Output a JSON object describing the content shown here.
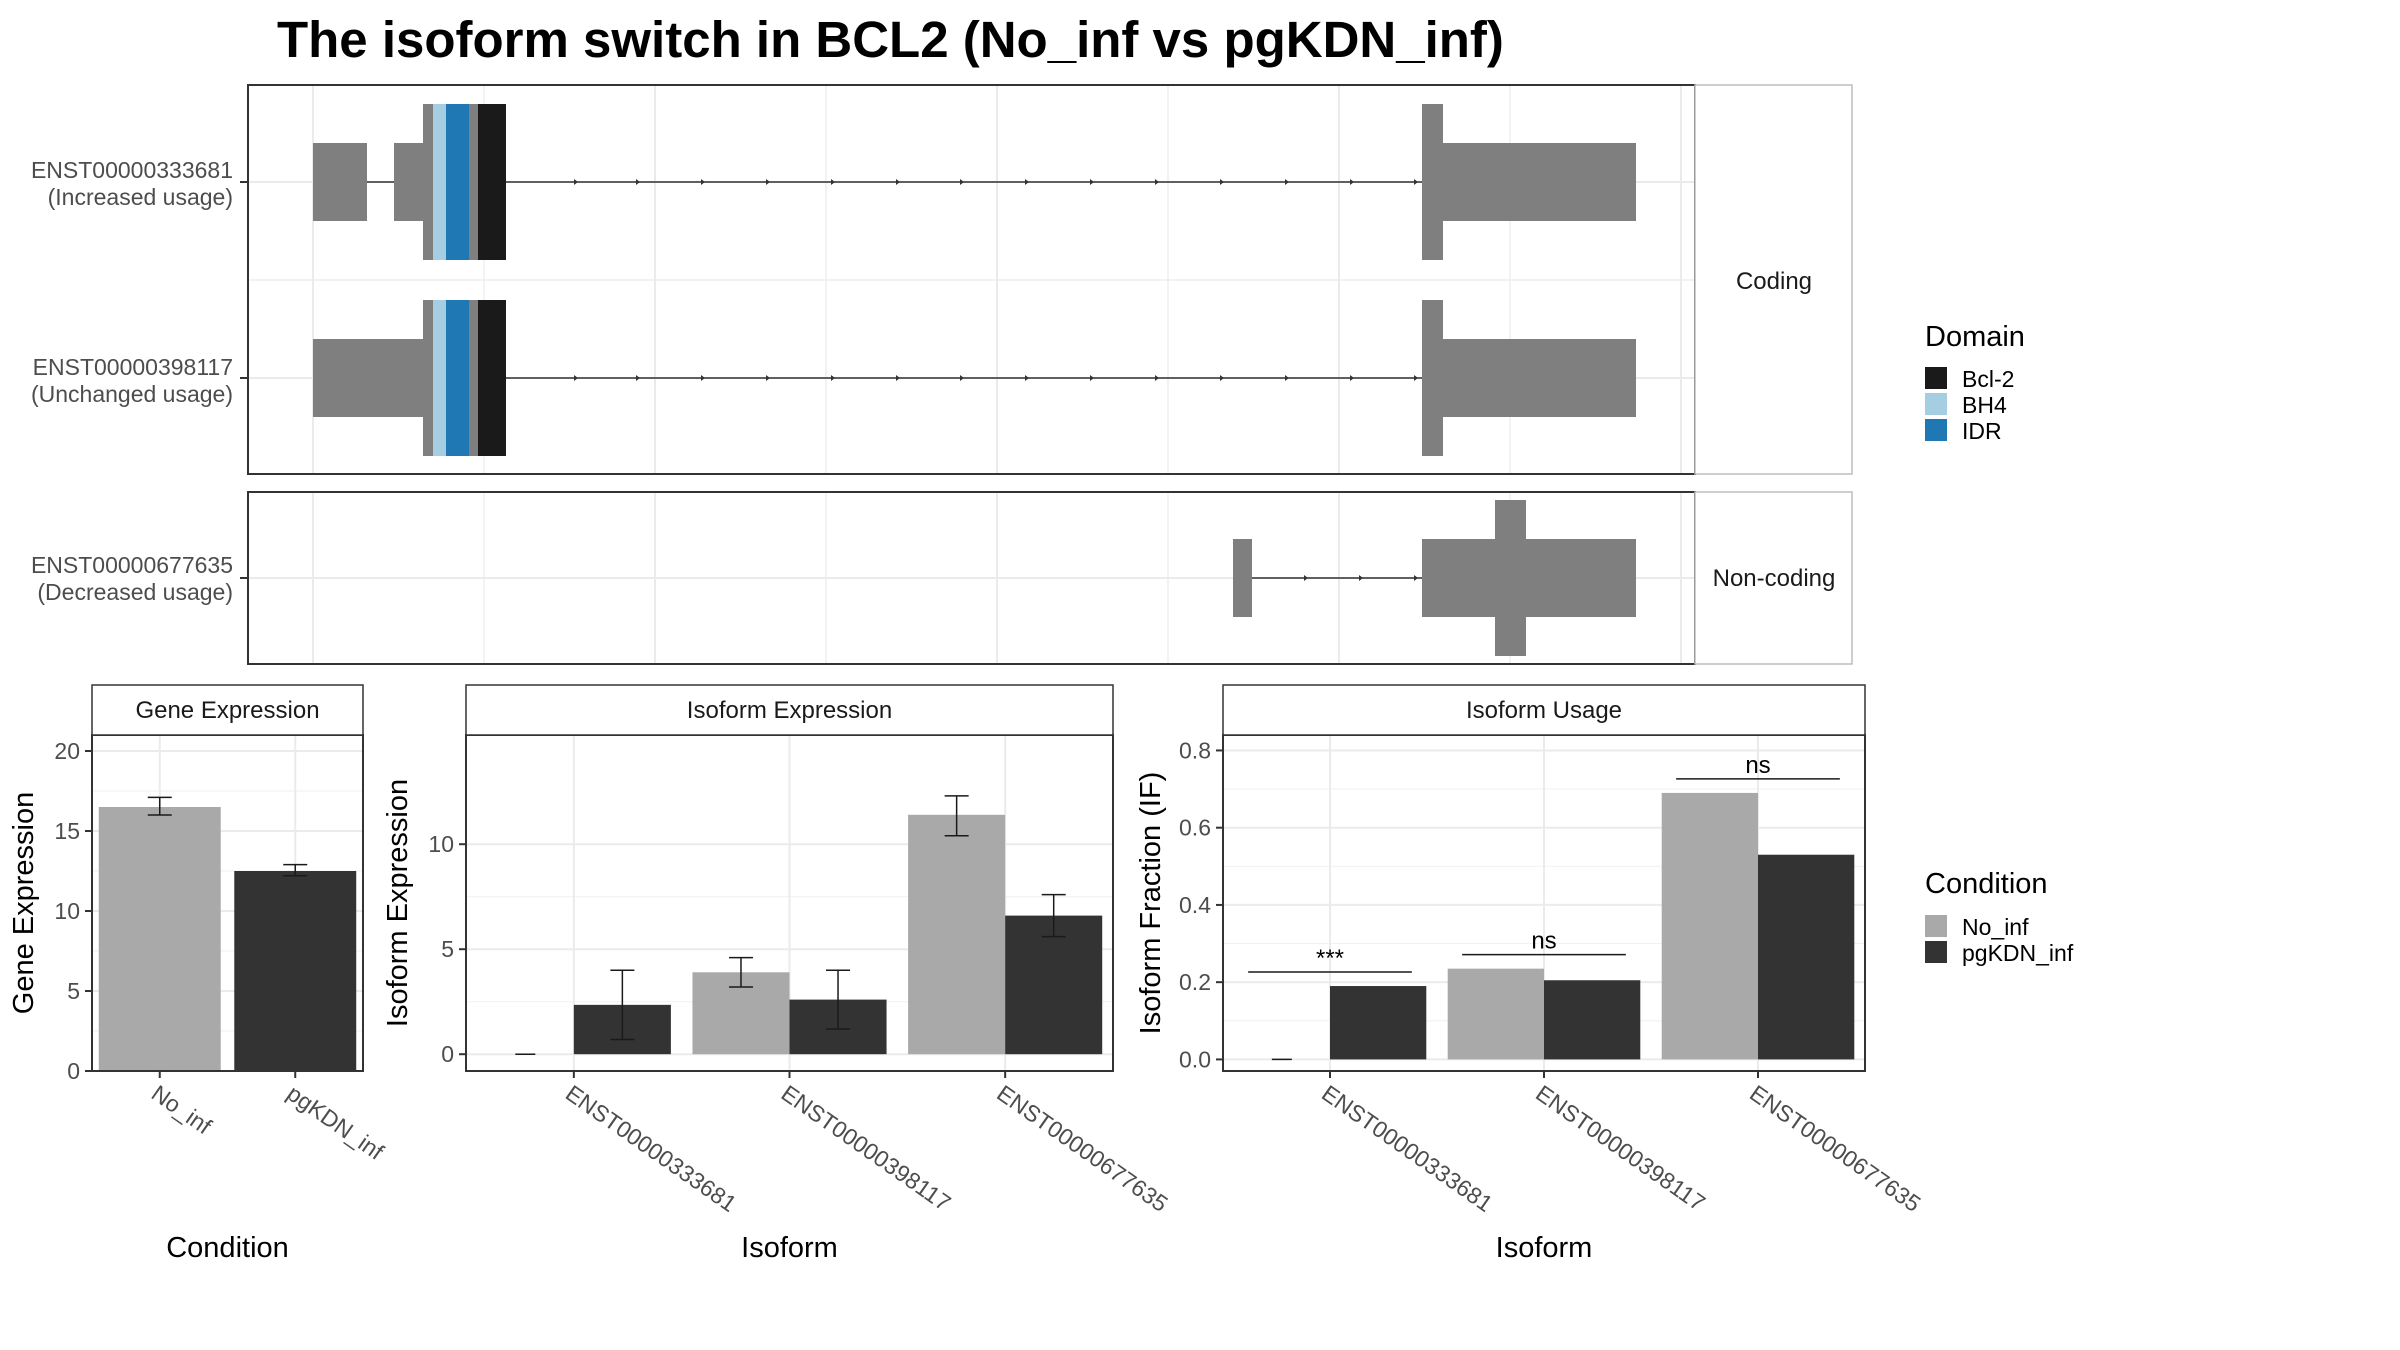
{
  "title": "The isoform switch in BCL2 (No_inf vs pgKDN_inf)",
  "colors": {
    "exon": "#7f7f7f",
    "Bcl-2": "#1a1a1a",
    "BH4": "#a6cee3",
    "IDR": "#1f78b4",
    "No_inf": "#a9a9a9",
    "pgKDN_inf": "#333333",
    "grid": "#ebebeb",
    "strip_bg": "#ffffff",
    "panel_border": "#333333",
    "strip_border": "#bdbdbd"
  },
  "structure": {
    "groups": [
      {
        "label": "Coding",
        "transcripts": [
          {
            "id": "ENST00000333681",
            "note": "(Increased usage)"
          },
          {
            "id": "ENST00000398117",
            "note": "(Unchanged usage)"
          }
        ]
      },
      {
        "label": "Non-coding",
        "transcripts": [
          {
            "id": "ENST00000677635",
            "note": "(Decreased usage)"
          }
        ]
      }
    ],
    "domain_legend": {
      "title": "Domain",
      "items": [
        {
          "name": "Bcl-2",
          "color": "#1a1a1a"
        },
        {
          "name": "BH4",
          "color": "#a6cee3"
        },
        {
          "name": "IDR",
          "color": "#1f78b4"
        }
      ]
    }
  },
  "chart_data": [
    {
      "type": "bar",
      "title": "Gene Expression",
      "xlabel": "Condition",
      "ylabel": "Gene Expression",
      "categories": [
        "No_inf",
        "pgKDN_inf"
      ],
      "values": [
        16.5,
        12.5
      ],
      "errors": [
        [
          16.0,
          17.1
        ],
        [
          12.2,
          12.9
        ]
      ],
      "ylim": [
        0,
        21
      ],
      "yticks": [
        0,
        5,
        10,
        15,
        20
      ],
      "grid": true
    },
    {
      "type": "bar",
      "title": "Isoform Expression",
      "xlabel": "Isoform",
      "ylabel": "Isoform Expression",
      "categories": [
        "ENST00000333681",
        "ENST00000398117",
        "ENST00000677635"
      ],
      "series": [
        {
          "name": "No_inf",
          "values": [
            0.0,
            3.9,
            11.4
          ],
          "errors": [
            [
              0.0,
              0.0
            ],
            [
              3.2,
              4.6
            ],
            [
              10.4,
              12.3
            ]
          ]
        },
        {
          "name": "pgKDN_inf",
          "values": [
            2.35,
            2.6,
            6.6
          ],
          "errors": [
            [
              0.7,
              4.0
            ],
            [
              1.2,
              4.0
            ],
            [
              5.6,
              7.6
            ]
          ]
        }
      ],
      "ylim": [
        -0.8,
        15.2
      ],
      "yticks": [
        0,
        5,
        10
      ],
      "grid": true
    },
    {
      "type": "bar",
      "title": "Isoform Usage",
      "xlabel": "Isoform",
      "ylabel": "Isoform Fraction (IF)",
      "categories": [
        "ENST00000333681",
        "ENST00000398117",
        "ENST00000677635"
      ],
      "series": [
        {
          "name": "No_inf",
          "values": [
            0.0,
            0.235,
            0.69
          ]
        },
        {
          "name": "pgKDN_inf",
          "values": [
            0.19,
            0.205,
            0.53
          ]
        }
      ],
      "annotations": [
        "***",
        "ns",
        "ns"
      ],
      "ylim": [
        -0.03,
        0.84
      ],
      "yticks": [
        0.0,
        0.2,
        0.4,
        0.6,
        0.8
      ],
      "ytick_labels": [
        "0.0",
        "0.2",
        "0.4",
        "0.6",
        "0.8"
      ],
      "grid": true
    }
  ],
  "condition_legend": {
    "title": "Condition",
    "items": [
      {
        "name": "No_inf",
        "color": "#a9a9a9"
      },
      {
        "name": "pgKDN_inf",
        "color": "#333333"
      }
    ]
  }
}
